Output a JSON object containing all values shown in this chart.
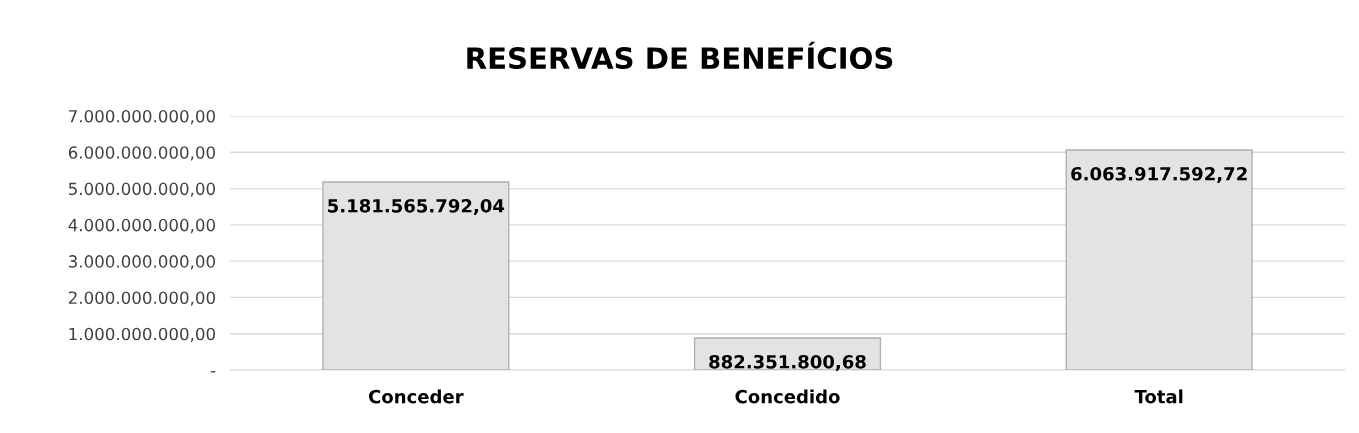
{
  "chart_data": {
    "type": "bar",
    "title": "RESERVAS DE BENEFÍCIOS",
    "categories": [
      "Conceder",
      "Concedido",
      "Total"
    ],
    "values": [
      5181565792.04,
      882351800.68,
      6063917592.72
    ],
    "value_labels": [
      "5.181.565.792,04",
      "882.351.800,68",
      "6.063.917.592,72"
    ],
    "color": "#e3e3e3",
    "ylim": [
      0,
      7000000000
    ],
    "yticks": [
      {
        "value": 0,
        "label": "-"
      },
      {
        "value": 1000000000,
        "label": "1.000.000.000,00"
      },
      {
        "value": 2000000000,
        "label": "2.000.000.000,00"
      },
      {
        "value": 3000000000,
        "label": "3.000.000.000,00"
      },
      {
        "value": 4000000000,
        "label": "4.000.000.000,00"
      },
      {
        "value": 5000000000,
        "label": "5.000.000.000,00"
      },
      {
        "value": 6000000000,
        "label": "6.000.000.000,00"
      },
      {
        "value": 7000000000,
        "label": "7.000.000.000,00"
      }
    ],
    "grid": "y",
    "legend": false
  }
}
